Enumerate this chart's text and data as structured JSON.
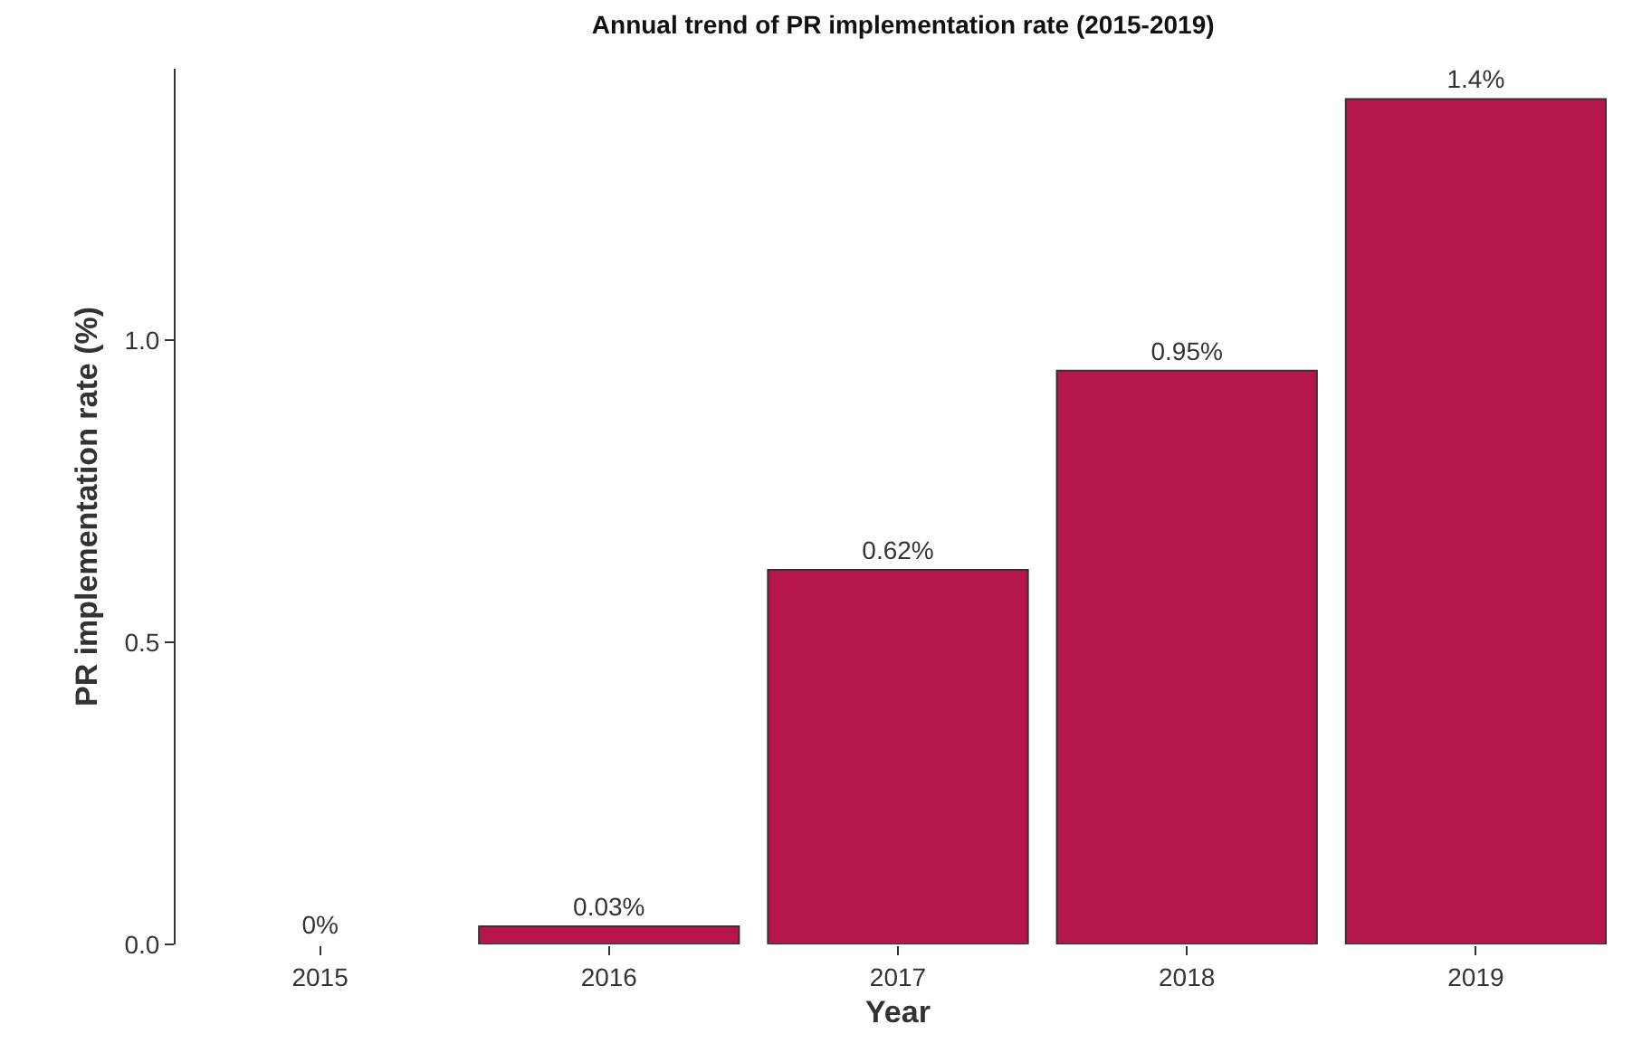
{
  "chart_data": {
    "type": "bar",
    "title": "Annual trend of PR implementation rate (2015-2019)",
    "xlabel": "Year",
    "ylabel": "PR implementation rate (%)",
    "categories": [
      "2015",
      "2016",
      "2017",
      "2018",
      "2019"
    ],
    "values": [
      0,
      0.03,
      0.62,
      0.95,
      1.4
    ],
    "value_labels": [
      "0%",
      "0.03%",
      "0.62%",
      "0.95%",
      "1.4%"
    ],
    "color": "#b5174b",
    "ylim": [
      0,
      1.45
    ],
    "yticks": [
      {
        "value": 0,
        "label": "0.0"
      },
      {
        "value": 0.5,
        "label": "0.5"
      },
      {
        "value": 1,
        "label": "1.0"
      }
    ],
    "legend": false
  }
}
